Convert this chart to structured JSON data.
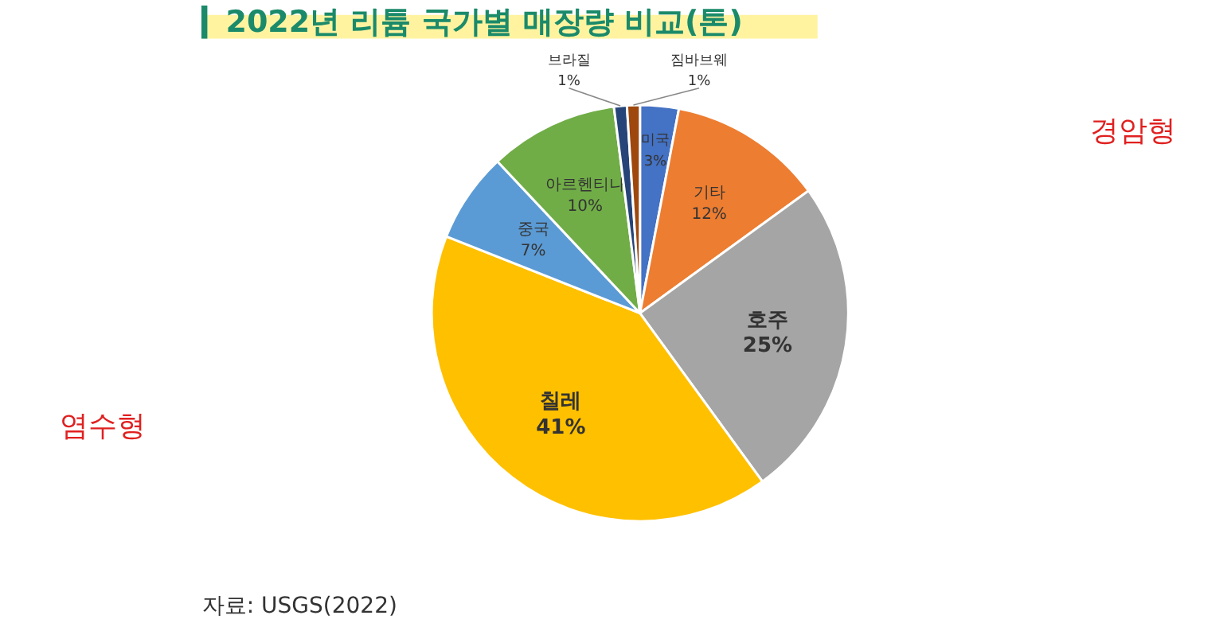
{
  "chart_data": {
    "type": "pie",
    "title": "2022년 리튬 국가별 매장량 비교(톤)",
    "categories": [
      "미국",
      "기타",
      "호주",
      "칠레",
      "중국",
      "아르헨티나",
      "브라질",
      "짐바브웨"
    ],
    "values": [
      3,
      12,
      25,
      41,
      7,
      10,
      1,
      1
    ],
    "colors": [
      "#4472c4",
      "#ed7d31",
      "#a5a5a5",
      "#ffc000",
      "#5b9bd5",
      "#70ad47",
      "#264478",
      "#9e480e"
    ],
    "value_labels": [
      "3%",
      "12%",
      "25%",
      "41%",
      "7%",
      "10%",
      "1%",
      "1%"
    ],
    "annotations": [
      "자료: USGS(2022)",
      "염수형",
      "경암형"
    ]
  }
}
